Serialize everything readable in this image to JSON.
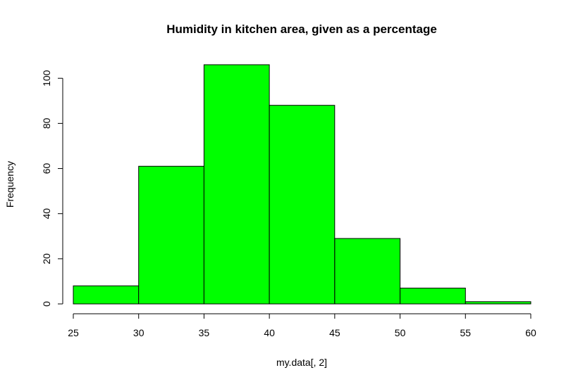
{
  "chart_data": {
    "type": "bar",
    "title": "Humidity in kitchen area, given as a percentage",
    "xlabel": "my.data[, 2]",
    "ylabel": "Frequency",
    "bin_edges": [
      25,
      30,
      35,
      40,
      45,
      50,
      55,
      60
    ],
    "values": [
      8,
      61,
      106,
      88,
      29,
      7,
      1
    ],
    "xlim": [
      25,
      60
    ],
    "ylim": [
      0,
      106
    ],
    "x_ticks": [
      25,
      30,
      35,
      40,
      45,
      50,
      55,
      60
    ],
    "y_ticks": [
      0,
      20,
      40,
      60,
      80,
      100
    ],
    "bar_color": "#00ff00",
    "border_color": "#000000",
    "grid": false,
    "legend": "none"
  }
}
